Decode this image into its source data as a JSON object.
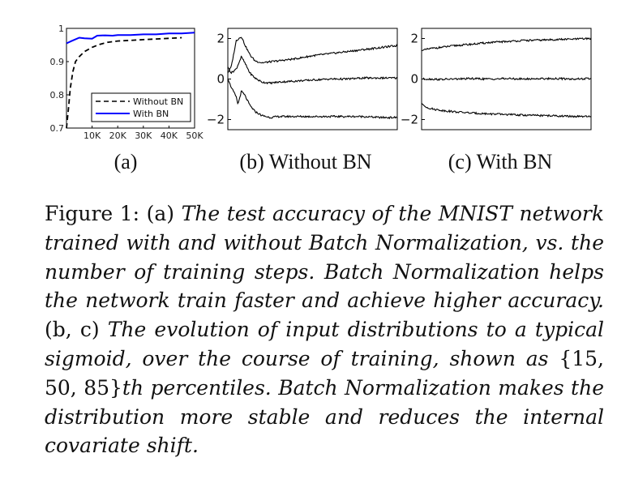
{
  "chart_data": [
    {
      "type": "line",
      "sub_label": "(a)",
      "xlim": [
        0,
        50000
      ],
      "ylim": [
        0.7,
        1.0
      ],
      "x_ticks": [
        10000,
        20000,
        30000,
        40000,
        50000
      ],
      "x_tick_labels": [
        "10K",
        "20K",
        "30K",
        "40K",
        "50K"
      ],
      "y_ticks": [
        0.7,
        0.8,
        0.9,
        1.0
      ],
      "y_tick_labels": [
        "0.7",
        "0.8",
        "0.9",
        "1"
      ],
      "legend_position": "bottom-right",
      "series": [
        {
          "name": "Without BN",
          "style": "dashed",
          "color": "#000000",
          "x": [
            0,
            800,
            1500,
            2500,
            3500,
            5000,
            7000,
            10000,
            13000,
            16000,
            20000,
            25000,
            30000,
            35000,
            40000,
            45000
          ],
          "y": [
            0.7,
            0.76,
            0.82,
            0.87,
            0.9,
            0.915,
            0.93,
            0.943,
            0.952,
            0.958,
            0.962,
            0.964,
            0.966,
            0.968,
            0.97,
            0.972
          ]
        },
        {
          "name": "With BN",
          "style": "solid",
          "color": "#0000ff",
          "x": [
            0,
            2000,
            5000,
            7000,
            10000,
            12000,
            15000,
            18000,
            20000,
            25000,
            30000,
            35000,
            40000,
            45000,
            50000
          ],
          "y": [
            0.955,
            0.962,
            0.972,
            0.97,
            0.969,
            0.978,
            0.979,
            0.978,
            0.98,
            0.98,
            0.982,
            0.982,
            0.985,
            0.985,
            0.987
          ]
        }
      ]
    },
    {
      "type": "line",
      "sub_label": "(b) Without BN",
      "ylim": [
        -2.5,
        2.5
      ],
      "y_ticks": [
        -2,
        0,
        2
      ],
      "y_tick_labels": [
        "−2",
        "0",
        "2"
      ],
      "series": [
        {
          "x": [
            0,
            2,
            5,
            8,
            10,
            13,
            16,
            20,
            25,
            30,
            40,
            50,
            60,
            70,
            80,
            90,
            100
          ],
          "y": [
            0.3,
            0.6,
            1.9,
            2.1,
            1.7,
            1.2,
            0.9,
            0.8,
            0.85,
            0.9,
            1.0,
            1.15,
            1.25,
            1.35,
            1.45,
            1.55,
            1.65
          ]
        },
        {
          "x": [
            0,
            2,
            5,
            8,
            10,
            13,
            16,
            20,
            25,
            30,
            40,
            50,
            60,
            70,
            80,
            90,
            100
          ],
          "y": [
            0.6,
            0.3,
            0.5,
            1.1,
            0.8,
            0.3,
            0.05,
            -0.15,
            -0.2,
            -0.15,
            -0.1,
            -0.05,
            0.0,
            0.0,
            0.05,
            0.05,
            0.05
          ]
        },
        {
          "x": [
            0,
            2,
            5,
            6,
            8,
            10,
            13,
            16,
            20,
            25,
            30,
            40,
            50,
            60,
            70,
            80,
            90,
            100
          ],
          "y": [
            0.0,
            -0.4,
            -0.9,
            -1.25,
            -0.6,
            -0.8,
            -1.3,
            -1.6,
            -1.8,
            -1.9,
            -1.85,
            -1.85,
            -1.85,
            -1.85,
            -1.85,
            -1.85,
            -1.9,
            -1.9
          ]
        }
      ]
    },
    {
      "type": "line",
      "sub_label": "(c) With BN",
      "ylim": [
        -2.5,
        2.5
      ],
      "y_ticks": [
        -2,
        0,
        2
      ],
      "y_tick_labels": [
        "−2",
        "0",
        "2"
      ],
      "series": [
        {
          "x": [
            0,
            5,
            10,
            20,
            30,
            40,
            50,
            60,
            70,
            80,
            90,
            100
          ],
          "y": [
            1.4,
            1.5,
            1.55,
            1.65,
            1.72,
            1.8,
            1.85,
            1.9,
            1.92,
            1.95,
            1.97,
            2.0
          ]
        },
        {
          "x": [
            0,
            5,
            10,
            20,
            30,
            40,
            50,
            60,
            70,
            80,
            90,
            100
          ],
          "y": [
            0.0,
            0.0,
            -0.02,
            0.0,
            0.02,
            0.0,
            0.02,
            0.0,
            0.02,
            0.02,
            0.0,
            0.02
          ]
        },
        {
          "x": [
            0,
            2,
            5,
            8,
            12,
            20,
            30,
            40,
            50,
            60,
            70,
            80,
            90,
            100
          ],
          "y": [
            -1.2,
            -1.35,
            -1.45,
            -1.5,
            -1.55,
            -1.62,
            -1.68,
            -1.72,
            -1.75,
            -1.78,
            -1.8,
            -1.82,
            -1.85,
            -1.86
          ]
        }
      ]
    }
  ],
  "caption": {
    "prefix": "Figure 1:",
    "a_marker": "(a)",
    "a_text": "The test accuracy of the MNIST network trained with and without Batch Normalization, vs. the number of training steps. Batch Normalization helps the network train faster and achieve higher accuracy.",
    "bc_marker": "(b, c)",
    "bc_text_1": "The evolution of input distributions to a typical sigmoid, over the course of training, shown as",
    "set_notation": "{15, 50, 85}",
    "bc_text_2": "th percentiles. Batch Normalization makes the distribution more stable and reduces the internal covariate shift."
  }
}
